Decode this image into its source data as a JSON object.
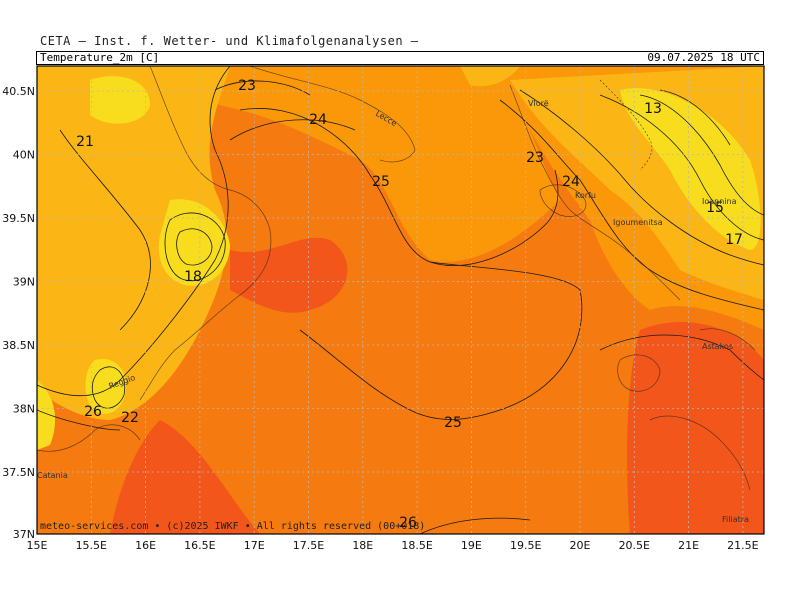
{
  "header": {
    "source": "CETA — Inst. f. Wetter- und Klimafolgenanalysen —",
    "variable": "Temperature_2m [C]",
    "valid_time": "09.07.2025 18 UTC"
  },
  "footer": {
    "credit": "meteo-services.com • (c)2025 IWKF • All rights reserved (00+018)"
  },
  "axes": {
    "x_ticks": [
      "15E",
      "15.5E",
      "16E",
      "16.5E",
      "17E",
      "17.5E",
      "18E",
      "18.5E",
      "19E",
      "19.5E",
      "20E",
      "20.5E",
      "21E",
      "21.5E"
    ],
    "y_ticks": [
      "40.5N",
      "40N",
      "39.5N",
      "39N",
      "38.5N",
      "38N",
      "37.5N",
      "37N"
    ]
  },
  "colors": {
    "deep": "#f2561a",
    "warm": "#f57a0f",
    "mid": "#fa980a",
    "light": "#fbb514",
    "pale": "#f7dd1e",
    "grid": "#b8b8b8",
    "frame": "#000000"
  },
  "contour_labels": [
    {
      "text": "23"
    },
    {
      "text": "24"
    },
    {
      "text": "21"
    },
    {
      "text": "25"
    },
    {
      "text": "18"
    },
    {
      "text": "26"
    },
    {
      "text": "22"
    },
    {
      "text": "25"
    },
    {
      "text": "23"
    },
    {
      "text": "24"
    },
    {
      "text": "13"
    },
    {
      "text": "15"
    },
    {
      "text": "17"
    },
    {
      "text": "26"
    }
  ],
  "place_labels": [
    {
      "text": "Lecce"
    },
    {
      "text": "Vlorë"
    },
    {
      "text": "Ioannina"
    },
    {
      "text": "Igoumenitsa"
    },
    {
      "text": "Korfu"
    },
    {
      "text": "Astakos"
    },
    {
      "text": "Reggio"
    },
    {
      "text": "Catania"
    },
    {
      "text": "Filiatra"
    }
  ]
}
